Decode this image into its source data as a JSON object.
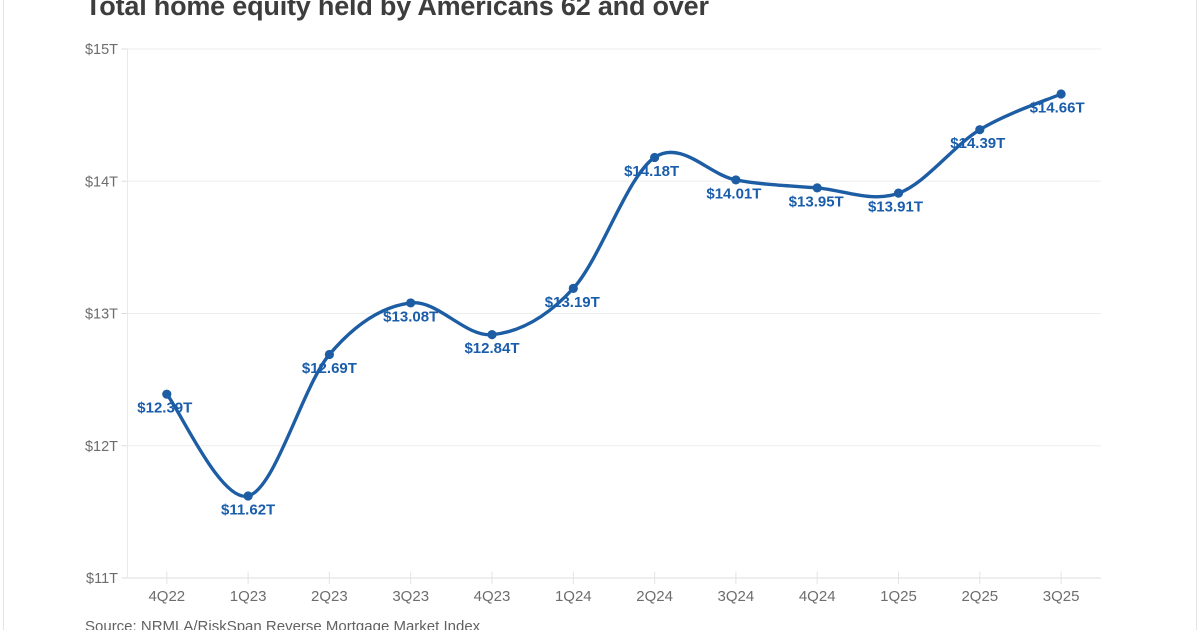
{
  "chart_data": {
    "type": "line",
    "title": "Total home equity held by Americans 62 and over",
    "source": "Source: NRMLA/RiskSpan Reverse Mortgage Market Index",
    "categories": [
      "4Q22",
      "1Q23",
      "2Q23",
      "3Q23",
      "4Q23",
      "1Q24",
      "2Q24",
      "3Q24",
      "4Q24",
      "1Q25",
      "2Q25",
      "3Q25"
    ],
    "values": [
      12.39,
      11.62,
      12.69,
      13.08,
      12.84,
      13.19,
      14.18,
      14.01,
      13.95,
      13.91,
      14.39,
      14.66
    ],
    "point_labels": [
      "$12.39T",
      "$11.62T",
      "$12.69T",
      "$13.08T",
      "$12.84T",
      "$13.19T",
      "$14.18T",
      "$14.01T",
      "$13.95T",
      "$13.91T",
      "$14.39T",
      "$14.66T"
    ],
    "xlabel": "",
    "ylabel": "",
    "y_tick_labels": [
      "$15T",
      "$14T",
      "$13T",
      "$12T",
      "$11T"
    ],
    "y_tick_values": [
      15,
      14,
      13,
      12,
      11
    ],
    "ylim": [
      11,
      15
    ],
    "grid": "horizontal",
    "legend": "none",
    "colors": {
      "line": "#1d5da4",
      "point": "#1d5da4",
      "point_label": "#1a5dab",
      "gridline": "#ededed",
      "axis_line": "#dcdcdc",
      "tick": "#dddddd",
      "axis_text": "#6d6d6d",
      "title_text": "#3d3d3d"
    },
    "label_offsets_x": [
      -2,
      0,
      0,
      0,
      0,
      -1,
      -3,
      -2,
      -1,
      -3,
      -2,
      -4
    ]
  }
}
